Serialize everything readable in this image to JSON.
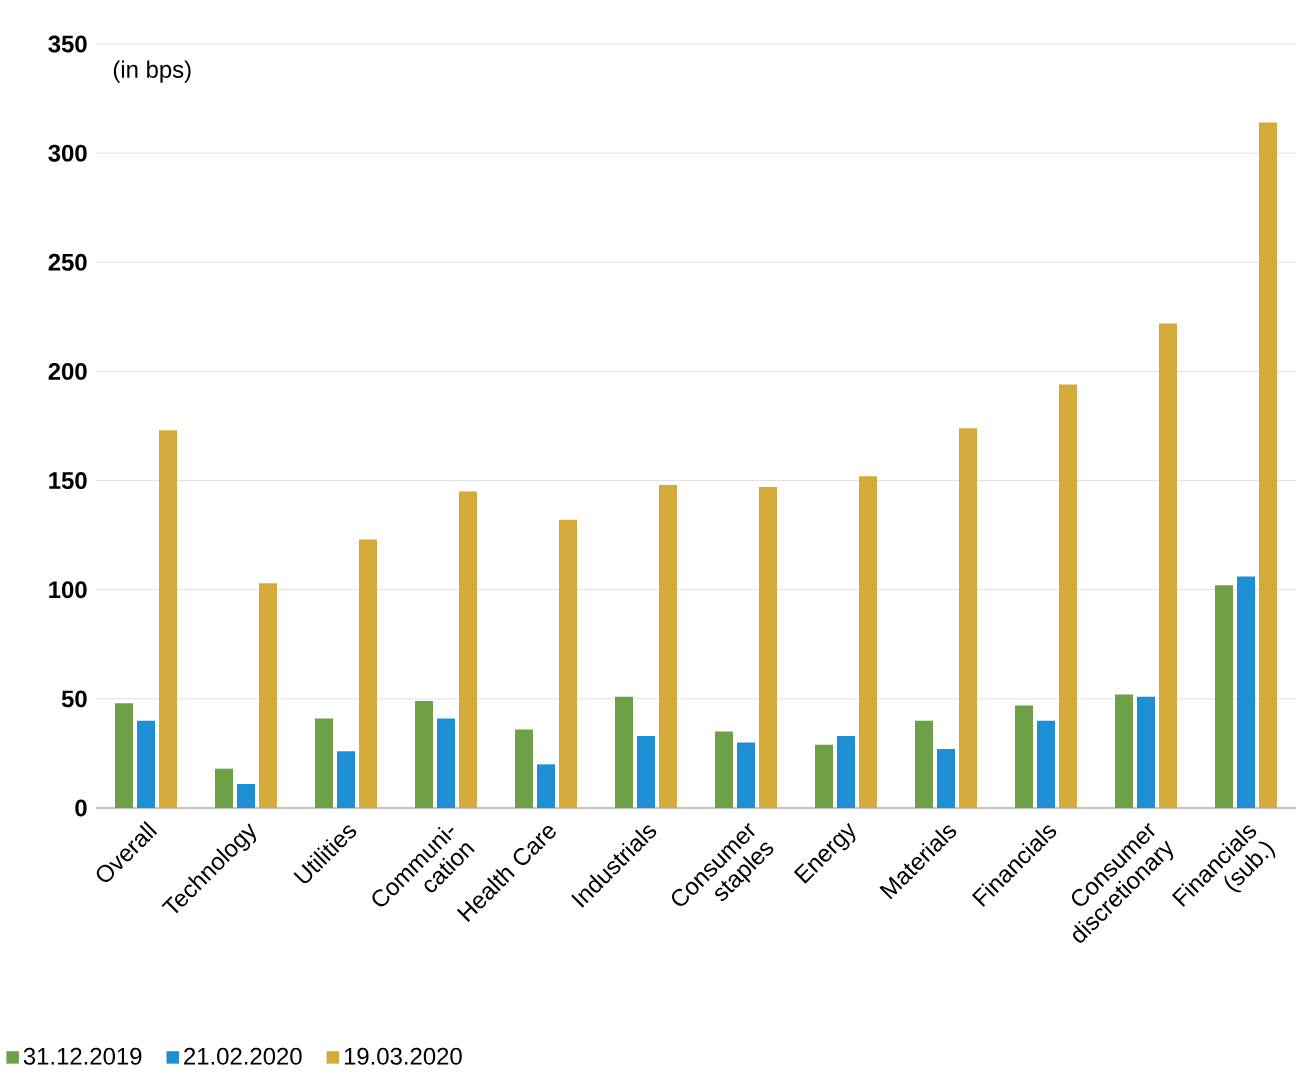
{
  "chart_data": {
    "type": "bar",
    "ylabel": "(in bps)",
    "categories": [
      "Overall",
      "Technology",
      "Utilities",
      "Communi-cation",
      "Health Care",
      "Industrials",
      "Consumer staples",
      "Energy",
      "Materials",
      "Financials",
      "Consumer discretionary",
      "Financials (sub.)"
    ],
    "series": [
      {
        "name": "31.12.2019",
        "color": "#6ea046",
        "values": [
          48,
          18,
          41,
          49,
          36,
          51,
          35,
          29,
          40,
          47,
          52,
          102
        ]
      },
      {
        "name": "21.02.2020",
        "color": "#1e8fd5",
        "values": [
          40,
          11,
          26,
          41,
          20,
          33,
          30,
          33,
          27,
          40,
          51,
          106
        ]
      },
      {
        "name": "19.03.2020",
        "color": "#d4ab3a",
        "values": [
          173,
          103,
          123,
          145,
          132,
          148,
          147,
          152,
          174,
          194,
          222,
          314
        ]
      }
    ],
    "ylim": [
      0,
      350
    ],
    "yticks": [
      0,
      50,
      100,
      150,
      200,
      250,
      300,
      350
    ],
    "grid": "y",
    "legend": "bottom"
  }
}
